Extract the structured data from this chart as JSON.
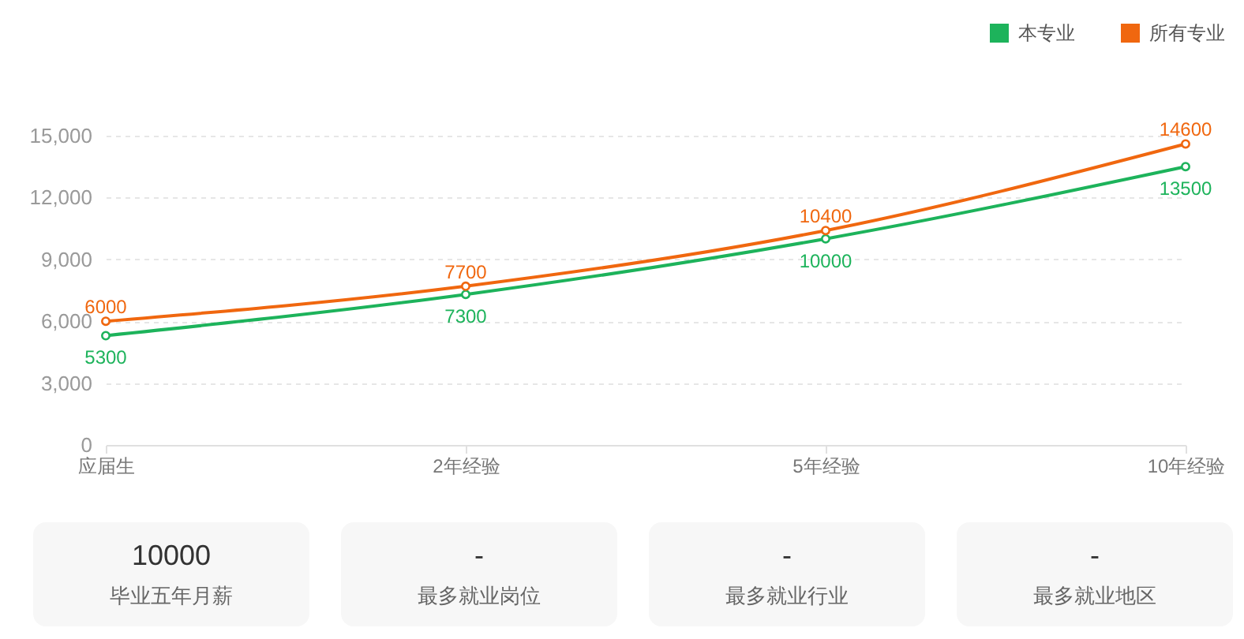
{
  "chart_data": [
    {
      "type": "line",
      "categories": [
        "应届生",
        "2年经验",
        "5年经验",
        "10年经验"
      ],
      "series": [
        {
          "name": "本专业",
          "color": "#1db35b",
          "values": [
            5300,
            7300,
            10000,
            13500
          ]
        },
        {
          "name": "所有专业",
          "color": "#f0670f",
          "values": [
            6000,
            7700,
            10400,
            14600
          ]
        }
      ],
      "ylim": [
        0,
        15000
      ],
      "yticks": [
        0,
        {
          "value": 3000,
          "label": "3,000"
        },
        {
          "value": 6000,
          "label": "6,000"
        },
        {
          "value": 9000,
          "label": "9,000"
        },
        {
          "value": 12000,
          "label": "12,000"
        },
        {
          "value": 15000,
          "label": "15,000"
        }
      ],
      "grid": "y",
      "legend": "top right",
      "marker": "circle",
      "line_style": "solid",
      "data_labels": true
    },
    {
      "type": "other",
      "annotations": [
        "10000",
        "毕业五年月薪",
        "-",
        "最多就业岗位",
        "-",
        "最多就业行业",
        "-",
        "最多就业地区"
      ]
    }
  ]
}
